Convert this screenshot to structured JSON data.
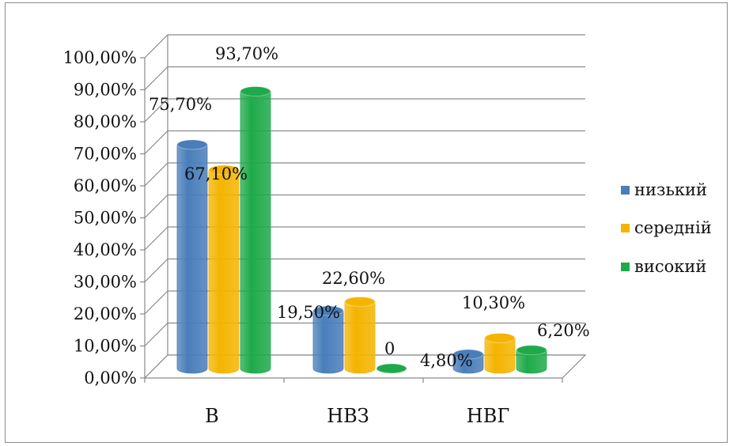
{
  "chart_data": {
    "type": "bar",
    "categories": [
      "В",
      "НВЗ",
      "НВГ"
    ],
    "series": [
      {
        "name": "низький",
        "color": "#4a7ebb",
        "values": [
          75.7,
          19.5,
          4.8
        ],
        "labels": [
          "75,70%",
          "19,50%",
          "4,80%"
        ]
      },
      {
        "name": "середній",
        "color": "#f4b400",
        "values": [
          67.1,
          22.6,
          10.3
        ],
        "labels": [
          "67,10%",
          "22,60%",
          "10,30%"
        ]
      },
      {
        "name": "високий",
        "color": "#1faa4a",
        "values": [
          93.7,
          0,
          6.2
        ],
        "labels": [
          "93,70%",
          "0",
          "6,20%"
        ]
      }
    ],
    "yticks": [
      "0,00%",
      "10,00%",
      "20,00%",
      "30,00%",
      "40,00%",
      "50,00%",
      "60,00%",
      "70,00%",
      "80,00%",
      "90,00%",
      "100,00%"
    ],
    "ylim": [
      0,
      100
    ],
    "grid": true,
    "legend": "right",
    "style": "3d-cylinder"
  }
}
